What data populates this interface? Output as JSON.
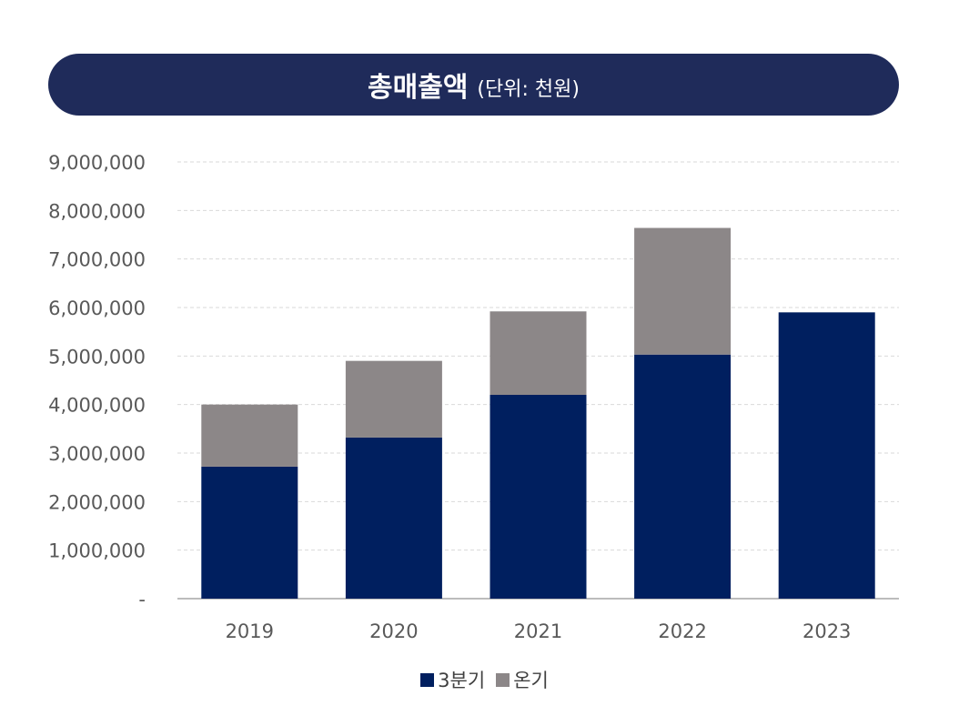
{
  "header": {
    "title": "총매출액",
    "subtitle": "(단위: 천원)"
  },
  "colors": {
    "title_bg": "#1f2b5a",
    "q3": "#001f5f",
    "full_year": "#8c8788",
    "grid": "#d9d9d9",
    "axis_text": "#595959"
  },
  "chart_data": {
    "type": "bar",
    "stacked": true,
    "categories": [
      "2019",
      "2020",
      "2021",
      "2022",
      "2023"
    ],
    "series": [
      {
        "name": "3분기",
        "values": [
          2720000,
          3320000,
          4200000,
          5030000,
          5900000
        ]
      },
      {
        "name": "온기",
        "values": [
          1280000,
          1580000,
          1720000,
          2610000,
          0
        ]
      }
    ],
    "ylim": [
      0,
      9000000
    ],
    "yticks": [
      0,
      1000000,
      2000000,
      3000000,
      4000000,
      5000000,
      6000000,
      7000000,
      8000000,
      9000000
    ],
    "ytick_labels": [
      "-",
      "1,000,000",
      "2,000,000",
      "3,000,000",
      "4,000,000",
      "5,000,000",
      "6,000,000",
      "7,000,000",
      "8,000,000",
      "9,000,000"
    ],
    "grid": true,
    "legend": "bottom-center"
  }
}
